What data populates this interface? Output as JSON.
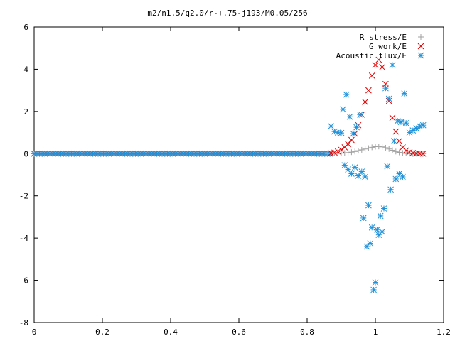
{
  "chart_data": {
    "type": "scatter",
    "title": "m2/n1.5/q2.0/r-+.75-j193/M0.05/256",
    "xlabel": "",
    "ylabel": "",
    "xlim": [
      0,
      1.2
    ],
    "ylim": [
      -8,
      6
    ],
    "x_ticks": [
      "0",
      "0.2",
      "0.4",
      "0.6",
      "0.8",
      "1",
      "1.2"
    ],
    "y_ticks": [
      "6",
      "4",
      "2",
      "0",
      "-2",
      "-4",
      "-6",
      "-8"
    ],
    "legend_position": "top-right",
    "series": [
      {
        "name": "R stress/E",
        "marker": "plus",
        "color": "#a0a0a0",
        "x": [
          0.86,
          0.87,
          0.88,
          0.89,
          0.9,
          0.91,
          0.92,
          0.93,
          0.94,
          0.95,
          0.96,
          0.97,
          0.98,
          0.99,
          1.0,
          1.01,
          1.02,
          1.03,
          1.04,
          1.05,
          1.06,
          1.07,
          1.08,
          1.09,
          1.1,
          1.11,
          1.12,
          1.13,
          1.14
        ],
        "y": [
          0.0,
          0.0,
          0.01,
          0.01,
          0.02,
          0.03,
          0.05,
          0.07,
          0.1,
          0.14,
          0.18,
          0.22,
          0.26,
          0.3,
          0.33,
          0.34,
          0.32,
          0.28,
          0.22,
          0.16,
          0.1,
          0.06,
          0.03,
          0.01,
          0.0,
          -0.01,
          0.0,
          0.01,
          0.0
        ]
      },
      {
        "name": "G work/E",
        "marker": "cross",
        "color": "#e00000",
        "x": [
          0.87,
          0.88,
          0.89,
          0.9,
          0.91,
          0.92,
          0.93,
          0.94,
          0.95,
          0.96,
          0.97,
          0.98,
          0.99,
          1.0,
          1.01,
          1.02,
          1.03,
          1.04,
          1.05,
          1.06,
          1.07,
          1.08,
          1.09,
          1.1,
          1.11,
          1.12,
          1.13,
          1.14
        ],
        "y": [
          0.02,
          0.05,
          0.1,
          0.18,
          0.3,
          0.45,
          0.65,
          0.95,
          1.35,
          1.85,
          2.45,
          3.0,
          3.7,
          4.2,
          4.45,
          4.1,
          3.3,
          2.5,
          1.7,
          1.05,
          0.6,
          0.3,
          0.15,
          0.07,
          0.03,
          0.01,
          0.0,
          0.0
        ]
      },
      {
        "name": "Acoustic flux/E",
        "marker": "star",
        "color": "#1e90d8",
        "x": [
          0.87,
          0.88,
          0.89,
          0.9,
          0.905,
          0.91,
          0.915,
          0.92,
          0.925,
          0.93,
          0.935,
          0.94,
          0.945,
          0.95,
          0.955,
          0.96,
          0.965,
          0.97,
          0.975,
          0.98,
          0.985,
          0.99,
          0.995,
          1.0,
          1.005,
          1.01,
          1.015,
          1.02,
          1.025,
          1.03,
          1.035,
          1.04,
          1.045,
          1.05,
          1.055,
          1.06,
          1.065,
          1.07,
          1.075,
          1.08,
          1.085,
          1.09,
          1.1,
          1.11,
          1.12,
          1.13,
          1.14
        ],
        "y": [
          1.3,
          1.05,
          1.0,
          0.98,
          2.1,
          -0.55,
          2.8,
          -0.75,
          1.75,
          -0.95,
          0.95,
          -0.65,
          1.25,
          -1.05,
          1.85,
          -0.85,
          -3.05,
          -1.1,
          -4.4,
          -2.45,
          -4.25,
          -3.5,
          -6.45,
          -6.1,
          -3.6,
          -3.85,
          -2.95,
          -3.7,
          -2.6,
          3.1,
          -0.6,
          2.6,
          -1.7,
          4.2,
          0.6,
          -1.2,
          1.55,
          -0.95,
          1.5,
          -1.1,
          2.85,
          1.45,
          1.0,
          1.1,
          1.2,
          1.3,
          1.35
        ]
      }
    ],
    "baseline_note": ""
  }
}
